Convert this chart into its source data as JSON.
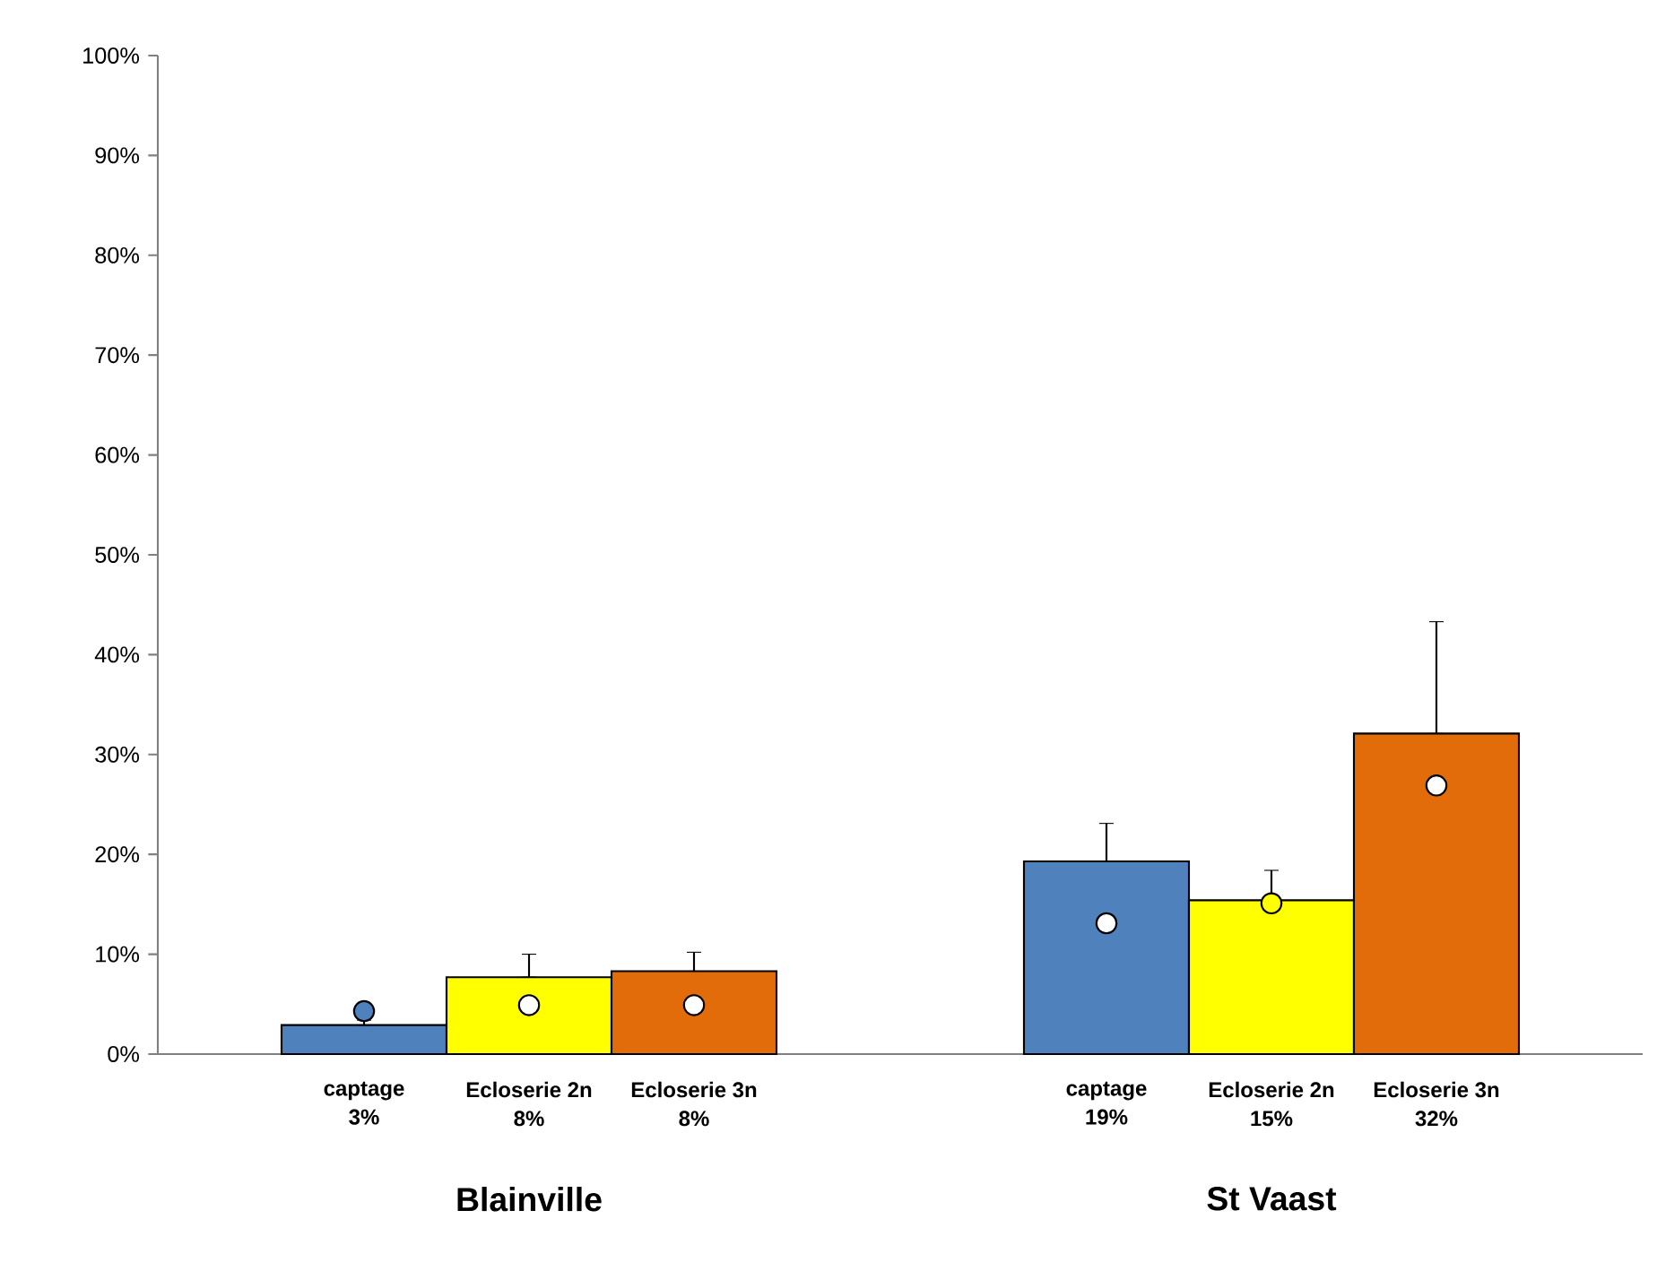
{
  "chart_data": {
    "type": "bar",
    "categories": [
      "captage",
      "Ecloserie 2n",
      "Ecloserie 3n",
      "captage",
      "Ecloserie 2n",
      "Ecloserie 3n"
    ],
    "series": [
      {
        "type": "bar",
        "colors": [
          "#4f81bd",
          "#ffff00",
          "#e36c0a",
          "#4f81bd",
          "#ffff00",
          "#e36c0a"
        ],
        "values": [
          2.9,
          7.7,
          8.3,
          19.3,
          15.4,
          32.1
        ],
        "errors": [
          [
            2.9,
            3.4
          ],
          [
            7.7,
            10.0
          ],
          [
            8.3,
            10.2
          ],
          [
            19.3,
            23.1
          ],
          [
            15.4,
            18.4
          ],
          [
            32.1,
            43.3
          ]
        ],
        "value_labels": [
          "3%",
          "8%",
          "8%",
          "19%",
          "15%",
          "32%"
        ]
      },
      {
        "type": "scatter",
        "marker": "circle",
        "colors": [
          "#4f81bd",
          "#ffffff",
          "#ffffff",
          "#ffffff",
          "#ffff00",
          "#ffffff"
        ],
        "values": [
          4.3,
          4.9,
          4.9,
          13.1,
          15.1,
          26.9
        ]
      }
    ],
    "ylim": [
      0,
      100
    ],
    "yticks": [
      {
        "value": 0,
        "label": "0%"
      },
      {
        "value": 10,
        "label": "10%"
      },
      {
        "value": 20,
        "label": "20%"
      },
      {
        "value": 30,
        "label": "30%"
      },
      {
        "value": 40,
        "label": "40%"
      },
      {
        "value": 50,
        "label": "50%"
      },
      {
        "value": 60,
        "label": "60%"
      },
      {
        "value": 70,
        "label": "70%"
      },
      {
        "value": 80,
        "label": "80%"
      },
      {
        "value": 90,
        "label": "90%"
      },
      {
        "value": 100,
        "label": "100%"
      }
    ],
    "annotations": [
      "Blainville",
      "St Vaast"
    ],
    "grid": false
  }
}
